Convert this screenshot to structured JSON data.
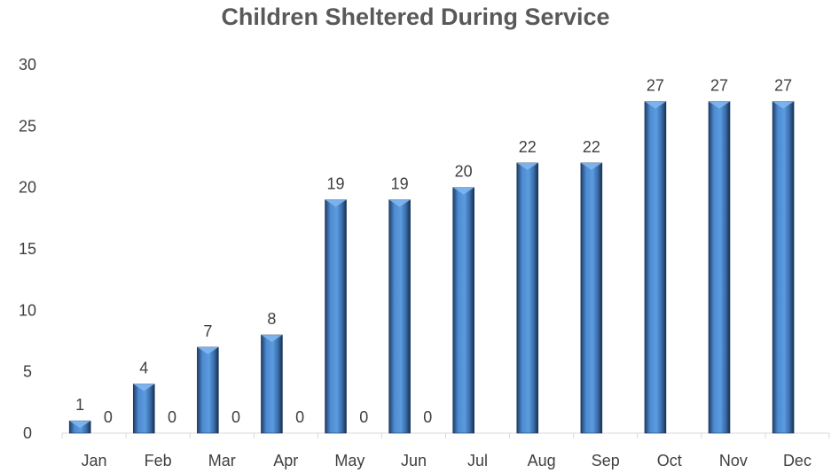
{
  "chart_data": {
    "type": "bar",
    "title": "Children Sheltered During Service",
    "xlabel": "",
    "ylabel": "",
    "ylim": [
      0,
      30
    ],
    "yticks": [
      0,
      5,
      10,
      15,
      20,
      25,
      30
    ],
    "grid": false,
    "legend": "none",
    "categories": [
      "Jan",
      "Feb",
      "Mar",
      "Apr",
      "May",
      "Jun",
      "Jul",
      "Aug",
      "Sep",
      "Oct",
      "Nov",
      "Dec"
    ],
    "series": [
      {
        "values": [
          1,
          4,
          7,
          8,
          19,
          19,
          20,
          22,
          22,
          27,
          27,
          27
        ],
        "color": "#4a86c8"
      },
      {
        "values": [
          0,
          0,
          0,
          0,
          0,
          0,
          null,
          null,
          null,
          null,
          null,
          null
        ],
        "color": "#4a86c8"
      }
    ]
  }
}
